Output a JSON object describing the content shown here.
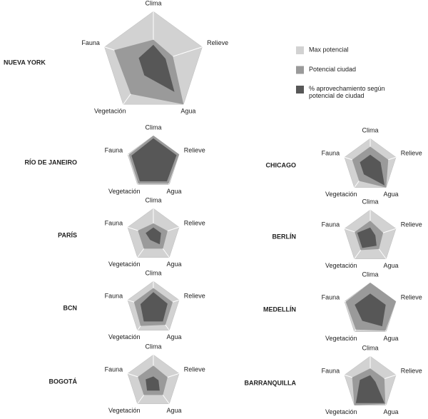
{
  "chart_data": [
    {
      "type": "radar",
      "title": "NUEVA YORK",
      "categories": [
        "Clima",
        "Relieve",
        "Agua",
        "Vegetación",
        "Fauna"
      ],
      "rlim": [
        0,
        100
      ],
      "legend": "right",
      "series": [
        {
          "name": "Max potencial",
          "color": "#d2d2d2",
          "values": [
            100,
            100,
            100,
            100,
            100
          ]
        },
        {
          "name": "Potencial ciudad",
          "color": "#9a9a9a",
          "values": [
            45,
            40,
            100,
            75,
            80
          ]
        },
        {
          "name": "% aprovechamiento según potencial de ciudad",
          "color": "#575757",
          "values": [
            35,
            25,
            70,
            30,
            30
          ]
        }
      ]
    },
    {
      "type": "radar",
      "title": "RÍO DE JANEIRO",
      "categories": [
        "Clima",
        "Relieve",
        "Agua",
        "Vegetación",
        "Fauna"
      ],
      "rlim": [
        0,
        100
      ],
      "series": [
        {
          "color": "#d2d2d2",
          "values": [
            100,
            100,
            100,
            100,
            100
          ]
        },
        {
          "color": "#9a9a9a",
          "values": [
            100,
            100,
            95,
            95,
            95
          ]
        },
        {
          "color": "#575757",
          "values": [
            90,
            90,
            85,
            85,
            85
          ]
        }
      ]
    },
    {
      "type": "radar",
      "title": "CHICAGO",
      "categories": [
        "Clima",
        "Relieve",
        "Agua",
        "Vegetación",
        "Fauna"
      ],
      "rlim": [
        0,
        100
      ],
      "series": [
        {
          "color": "#d2d2d2",
          "values": [
            100,
            100,
            100,
            100,
            100
          ]
        },
        {
          "color": "#9a9a9a",
          "values": [
            70,
            70,
            100,
            70,
            70
          ]
        },
        {
          "color": "#575757",
          "values": [
            40,
            40,
            90,
            40,
            40
          ]
        }
      ]
    },
    {
      "type": "radar",
      "title": "PARÍS",
      "categories": [
        "Clima",
        "Relieve",
        "Agua",
        "Vegetación",
        "Fauna"
      ],
      "rlim": [
        0,
        100
      ],
      "series": [
        {
          "color": "#d2d2d2",
          "values": [
            100,
            100,
            100,
            100,
            100
          ]
        },
        {
          "color": "#9a9a9a",
          "values": [
            45,
            55,
            60,
            60,
            60
          ]
        },
        {
          "color": "#575757",
          "values": [
            30,
            30,
            40,
            20,
            30
          ]
        }
      ]
    },
    {
      "type": "radar",
      "title": "BERLÍN",
      "categories": [
        "Clima",
        "Relieve",
        "Agua",
        "Vegetación",
        "Fauna"
      ],
      "rlim": [
        0,
        100
      ],
      "series": [
        {
          "color": "#d2d2d2",
          "values": [
            100,
            100,
            100,
            100,
            100
          ]
        },
        {
          "color": "#9a9a9a",
          "values": [
            60,
            50,
            55,
            60,
            60
          ]
        },
        {
          "color": "#575757",
          "values": [
            35,
            20,
            40,
            50,
            50
          ]
        }
      ]
    },
    {
      "type": "radar",
      "title": "BCN",
      "categories": [
        "Clima",
        "Relieve",
        "Agua",
        "Vegetación",
        "Fauna"
      ],
      "rlim": [
        0,
        100
      ],
      "series": [
        {
          "color": "#d2d2d2",
          "values": [
            100,
            100,
            100,
            100,
            100
          ]
        },
        {
          "color": "#9a9a9a",
          "values": [
            75,
            75,
            75,
            80,
            75
          ]
        },
        {
          "color": "#575757",
          "values": [
            60,
            55,
            60,
            60,
            50
          ]
        }
      ]
    },
    {
      "type": "radar",
      "title": "MEDELLÍN",
      "categories": [
        "Clima",
        "Relieve",
        "Agua",
        "Vegetación",
        "Fauna"
      ],
      "rlim": [
        0,
        100
      ],
      "series": [
        {
          "color": "#d2d2d2",
          "values": [
            100,
            100,
            100,
            100,
            100
          ]
        },
        {
          "color": "#9a9a9a",
          "values": [
            100,
            100,
            95,
            90,
            95
          ]
        },
        {
          "color": "#575757",
          "values": [
            60,
            60,
            75,
            50,
            60
          ]
        }
      ]
    },
    {
      "type": "radar",
      "title": "BOGOTÁ",
      "categories": [
        "Clima",
        "Relieve",
        "Agua",
        "Vegetación",
        "Fauna"
      ],
      "rlim": [
        0,
        100
      ],
      "series": [
        {
          "color": "#d2d2d2",
          "values": [
            100,
            100,
            100,
            100,
            100
          ]
        },
        {
          "color": "#9a9a9a",
          "values": [
            60,
            55,
            60,
            60,
            60
          ]
        },
        {
          "color": "#575757",
          "values": [
            20,
            20,
            40,
            40,
            30
          ]
        }
      ]
    },
    {
      "type": "radar",
      "title": "BARRANQUILLA",
      "categories": [
        "Clima",
        "Relieve",
        "Agua",
        "Vegetación",
        "Fauna"
      ],
      "rlim": [
        0,
        100
      ],
      "series": [
        {
          "color": "#d2d2d2",
          "values": [
            100,
            100,
            100,
            100,
            100
          ]
        },
        {
          "color": "#9a9a9a",
          "values": [
            55,
            55,
            95,
            100,
            70
          ]
        },
        {
          "color": "#575757",
          "values": [
            30,
            20,
            90,
            90,
            40
          ]
        }
      ]
    }
  ]
}
